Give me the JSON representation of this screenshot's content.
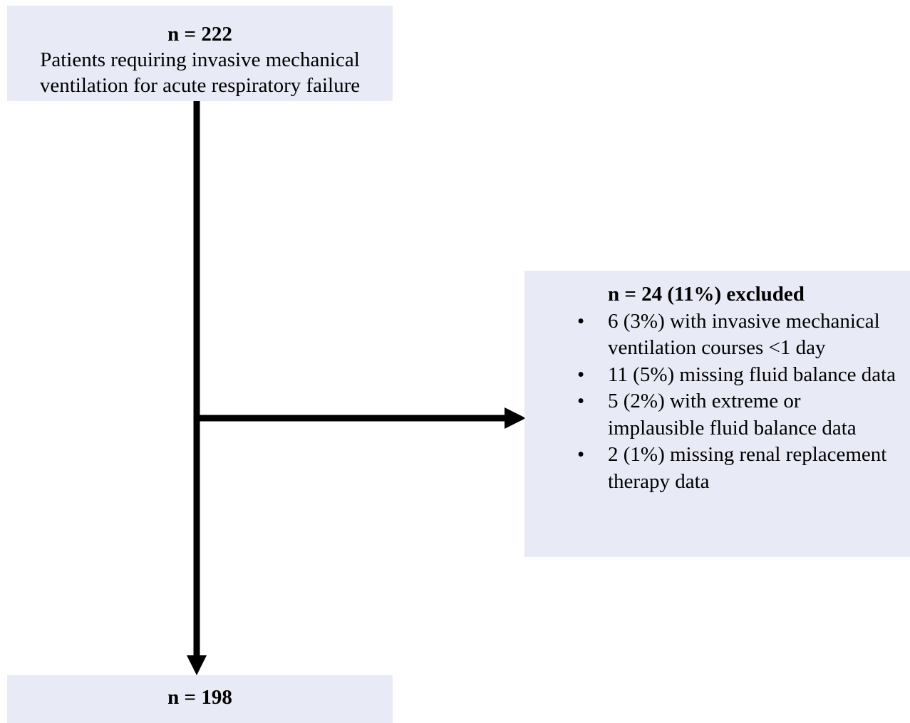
{
  "flow": {
    "top_box": {
      "count": "n = 222",
      "description": "Patients requiring invasive mechanical ventilation for acute respiratory failure"
    },
    "excluded_box": {
      "title": "n = 24 (11%) excluded",
      "bullet_symbol": "•",
      "items": [
        "6 (3%) with invasive mechanical ventilation courses <1 day",
        "11 (5%) missing fluid balance data",
        "5 (2%) with extreme or implausible fluid balance data",
        "2 (1%) missing renal replacement therapy data"
      ]
    },
    "bottom_box": {
      "count": "n = 198"
    }
  },
  "colors": {
    "box_fill": "#e8eaf5",
    "arrow": "#000000"
  }
}
